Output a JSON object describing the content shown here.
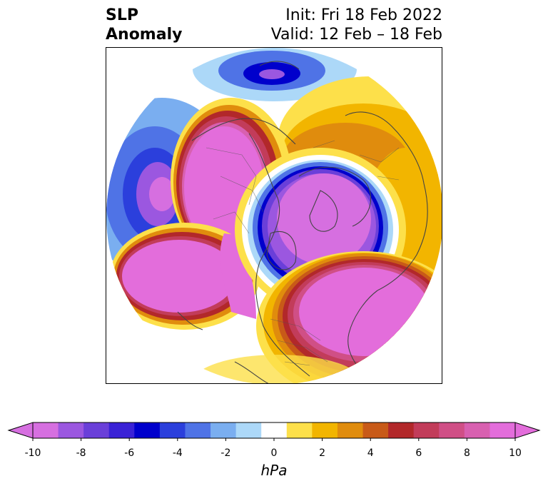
{
  "title": {
    "left_line1": "SLP",
    "left_line2": "Anomaly",
    "right_line1": "Init: Fri 18 Feb 2022",
    "right_line2": "Valid: 12 Feb – 18 Feb"
  },
  "colorbar": {
    "units": "hPa",
    "ticks": [
      "-10",
      "-8",
      "-6",
      "-4",
      "-2",
      "0",
      "2",
      "4",
      "6",
      "8",
      "10"
    ],
    "colors": [
      "#d66fe0",
      "#9b57e0",
      "#6a3fd9",
      "#3a22d6",
      "#0000cc",
      "#2b3fdc",
      "#4f73e6",
      "#7aaef0",
      "#acd8f8",
      "#ffffff",
      "#fde04a",
      "#f2b500",
      "#e08c0d",
      "#c85a18",
      "#b2282a",
      "#c23c5a",
      "#d04f86",
      "#d860b0",
      "#e36ddb"
    ],
    "min_color": "#d66fe0",
    "max_color": "#e36ddb"
  }
}
